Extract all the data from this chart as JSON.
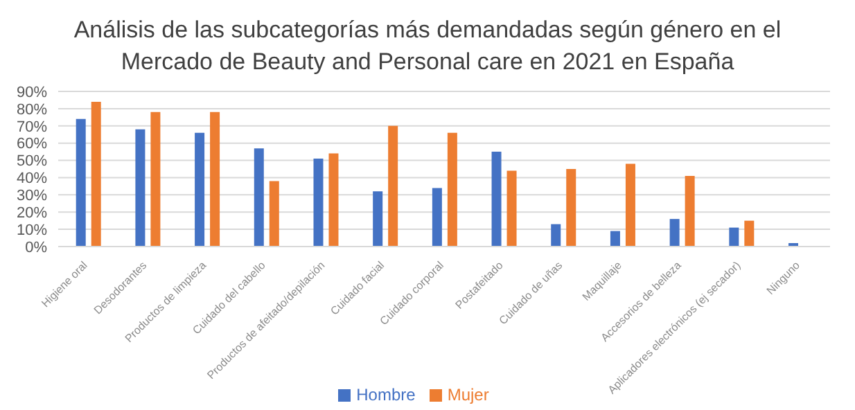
{
  "chart_data": {
    "type": "bar",
    "title": "Análisis de las subcategorías más demandadas según género en el Mercado de Beauty and Personal care en 2021 en España",
    "categories": [
      "Higiene oral",
      "Desodorantes",
      "Productos de limpieza",
      "Cuidado del cabello",
      "Productos de afeitado/depilación",
      "Cuidado facial",
      "Cuidado corporal",
      "Postafeitado",
      "Cuidado de uñas",
      "Maquillaje",
      "Accesorios de belleza",
      "Aplicadores electrónicos (ej secador)",
      "Ninguno"
    ],
    "series": [
      {
        "name": "Hombre",
        "color": "#4472c4",
        "values": [
          74,
          68,
          66,
          57,
          51,
          32,
          34,
          55,
          13,
          9,
          16,
          11,
          2
        ]
      },
      {
        "name": "Mujer",
        "color": "#ed7d31",
        "values": [
          84,
          78,
          78,
          38,
          54,
          70,
          66,
          44,
          45,
          48,
          41,
          15,
          null
        ]
      }
    ],
    "ylim": [
      0,
      90
    ],
    "yticks": [
      {
        "value": 0,
        "label": "0%"
      },
      {
        "value": 10,
        "label": "10%"
      },
      {
        "value": 20,
        "label": "20%"
      },
      {
        "value": 30,
        "label": "30%"
      },
      {
        "value": 40,
        "label": "40%"
      },
      {
        "value": 50,
        "label": "50%"
      },
      {
        "value": 60,
        "label": "60%"
      },
      {
        "value": 70,
        "label": "70%"
      },
      {
        "value": 80,
        "label": "80%"
      },
      {
        "value": 90,
        "label": "90%"
      }
    ],
    "grid": "y",
    "legend": "bottom"
  }
}
